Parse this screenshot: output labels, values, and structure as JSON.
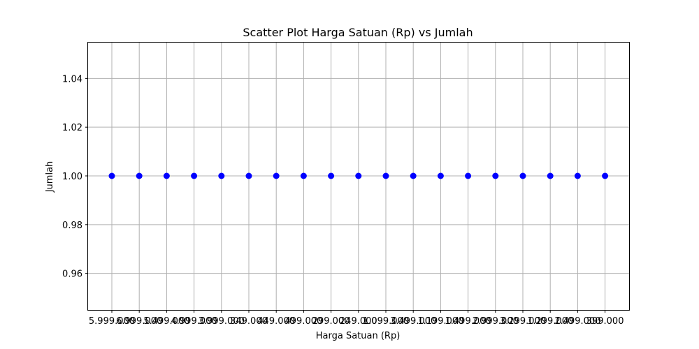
{
  "chart_data": {
    "type": "scatter",
    "title": "Scatter Plot Harga Satuan (Rp) vs Jumlah",
    "xlabel": "Harga Satuan (Rp)",
    "ylabel": "Jumlah",
    "x_tick_labels": [
      "5.999.000",
      "6.999.000",
      "5.499.000",
      "4.999.000",
      "3.999.000",
      "349.000",
      "449.000",
      "499.000",
      "299.000",
      "249.000",
      "1.099.000",
      "3.499.000",
      "1.199.000",
      "1.499.000",
      "2.999.000",
      "3.299.000",
      "1.299.000",
      "2.499.000",
      "399.000"
    ],
    "y": [
      1,
      1,
      1,
      1,
      1,
      1,
      1,
      1,
      1,
      1,
      1,
      1,
      1,
      1,
      1,
      1,
      1,
      1,
      1
    ],
    "yticks": [
      0.96,
      0.98,
      1.0,
      1.02,
      1.04
    ],
    "ylim": [
      0.945,
      1.055
    ],
    "grid": true,
    "marker_color": "#0000ff"
  }
}
